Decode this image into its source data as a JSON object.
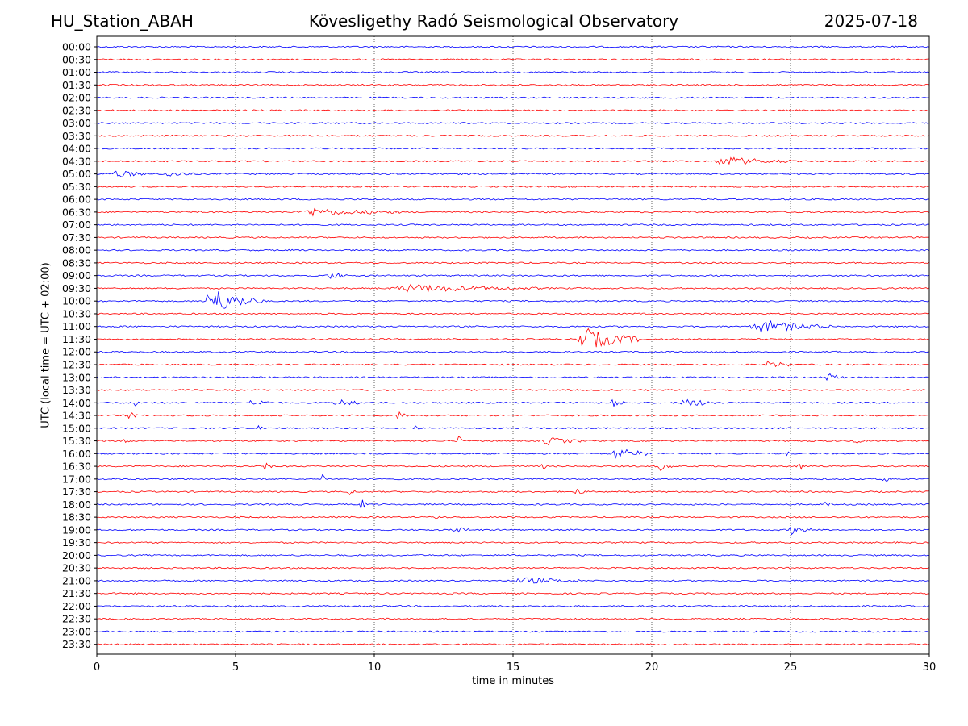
{
  "header": {
    "station": "HU_Station_ABAH",
    "observatory": "Kövesligethy Radó Seismological Observatory",
    "date": "2025-07-18"
  },
  "chart_data": {
    "type": "line",
    "title": "Kövesligethy Radó Seismological Observatory",
    "xlabel": "time in minutes",
    "ylabel": "UTC (local time = UTC + 02:00)",
    "xlim": [
      0,
      30
    ],
    "xticks": [
      0,
      5,
      10,
      15,
      20,
      25,
      30
    ],
    "grid": "vertical dotted lines at x ticks",
    "trace_colors": [
      "#0000ff",
      "#ff0000"
    ],
    "rows": [
      "00:00",
      "00:30",
      "01:00",
      "01:30",
      "02:00",
      "02:30",
      "03:00",
      "03:30",
      "04:00",
      "04:30",
      "05:00",
      "05:30",
      "06:00",
      "06:30",
      "07:00",
      "07:30",
      "08:00",
      "08:30",
      "09:00",
      "09:30",
      "10:00",
      "10:30",
      "11:00",
      "11:30",
      "12:00",
      "12:30",
      "13:00",
      "13:30",
      "14:00",
      "14:30",
      "15:00",
      "15:30",
      "16:00",
      "16:30",
      "17:00",
      "17:30",
      "18:00",
      "18:30",
      "19:00",
      "19:30",
      "20:00",
      "20:30",
      "21:00",
      "21:30",
      "22:00",
      "22:30",
      "23:00",
      "23:30"
    ],
    "events": [
      {
        "row": "04:30",
        "start": 22.2,
        "end": 25.0,
        "amp": 0.55
      },
      {
        "row": "05:00",
        "start": 0.5,
        "end": 1.8,
        "amp": 0.45
      },
      {
        "row": "05:00",
        "start": 2.4,
        "end": 3.5,
        "amp": 0.35
      },
      {
        "row": "06:30",
        "start": 7.2,
        "end": 11.0,
        "amp": 0.45
      },
      {
        "row": "09:00",
        "start": 8.3,
        "end": 9.0,
        "amp": 0.6
      },
      {
        "row": "09:30",
        "start": 10.5,
        "end": 16.0,
        "amp": 0.45
      },
      {
        "row": "10:00",
        "start": 3.8,
        "end": 6.0,
        "amp": 1.6
      },
      {
        "row": "11:00",
        "start": 23.5,
        "end": 26.5,
        "amp": 0.75
      },
      {
        "row": "11:30",
        "start": 17.2,
        "end": 19.6,
        "amp": 1.4
      },
      {
        "row": "12:30",
        "start": 24.0,
        "end": 25.2,
        "amp": 0.4
      },
      {
        "row": "13:00",
        "start": 26.2,
        "end": 27.0,
        "amp": 0.45
      },
      {
        "row": "14:00",
        "start": 1.3,
        "end": 1.6,
        "amp": 0.6
      },
      {
        "row": "14:00",
        "start": 5.5,
        "end": 6.2,
        "amp": 0.55
      },
      {
        "row": "14:00",
        "start": 8.5,
        "end": 9.5,
        "amp": 0.5
      },
      {
        "row": "14:00",
        "start": 18.5,
        "end": 19.0,
        "amp": 0.6
      },
      {
        "row": "14:00",
        "start": 21.0,
        "end": 22.5,
        "amp": 0.5
      },
      {
        "row": "14:30",
        "start": 1.0,
        "end": 1.5,
        "amp": 0.55
      },
      {
        "row": "14:30",
        "start": 10.8,
        "end": 11.3,
        "amp": 0.55
      },
      {
        "row": "15:00",
        "start": 5.8,
        "end": 6.1,
        "amp": 0.6
      },
      {
        "row": "15:00",
        "start": 11.4,
        "end": 11.6,
        "amp": 0.5
      },
      {
        "row": "15:30",
        "start": 0.8,
        "end": 1.2,
        "amp": 0.45
      },
      {
        "row": "15:30",
        "start": 13.0,
        "end": 13.2,
        "amp": 0.8
      },
      {
        "row": "15:30",
        "start": 16.0,
        "end": 17.5,
        "amp": 0.45
      },
      {
        "row": "15:30",
        "start": 27.2,
        "end": 27.6,
        "amp": 0.5
      },
      {
        "row": "16:00",
        "start": 18.5,
        "end": 20.0,
        "amp": 0.75
      },
      {
        "row": "16:00",
        "start": 24.7,
        "end": 25.0,
        "amp": 0.55
      },
      {
        "row": "16:30",
        "start": 6.0,
        "end": 6.3,
        "amp": 0.7
      },
      {
        "row": "16:30",
        "start": 16.0,
        "end": 16.2,
        "amp": 0.55
      },
      {
        "row": "16:30",
        "start": 20.2,
        "end": 20.8,
        "amp": 0.5
      },
      {
        "row": "16:30",
        "start": 25.2,
        "end": 25.6,
        "amp": 0.5
      },
      {
        "row": "17:00",
        "start": 8.1,
        "end": 8.3,
        "amp": 0.75
      },
      {
        "row": "17:00",
        "start": 28.3,
        "end": 28.6,
        "amp": 0.5
      },
      {
        "row": "17:30",
        "start": 9.0,
        "end": 9.4,
        "amp": 0.45
      },
      {
        "row": "17:30",
        "start": 17.2,
        "end": 17.6,
        "amp": 0.5
      },
      {
        "row": "18:00",
        "start": 9.5,
        "end": 9.7,
        "amp": 0.9
      },
      {
        "row": "18:00",
        "start": 26.2,
        "end": 26.5,
        "amp": 0.4
      },
      {
        "row": "18:30",
        "start": 12.2,
        "end": 12.5,
        "amp": 0.5
      },
      {
        "row": "19:00",
        "start": 12.8,
        "end": 13.4,
        "amp": 0.55
      },
      {
        "row": "19:00",
        "start": 24.9,
        "end": 25.8,
        "amp": 0.5
      },
      {
        "row": "21:00",
        "start": 15.0,
        "end": 17.5,
        "amp": 0.35
      }
    ]
  }
}
